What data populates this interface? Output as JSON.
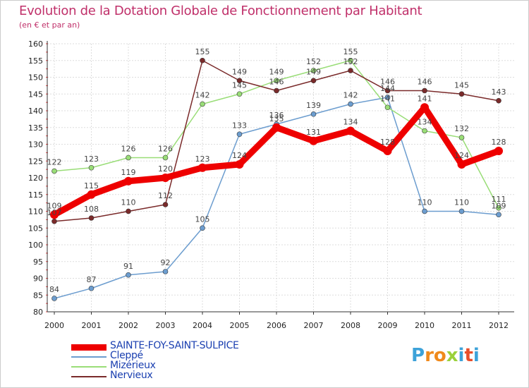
{
  "title": "Evolution de la Dotation Globale de Fonctionnement par Habitant",
  "subtitle": "(en € et par an)",
  "logo": {
    "text": "Proxiti",
    "letter_colors": [
      "#3da2d9",
      "#f08a1c",
      "#f08a1c",
      "#9bd13b",
      "#3da2d9",
      "#e94e2a",
      "#3da2d9"
    ]
  },
  "chart_data": {
    "type": "line",
    "title": "Evolution de la Dotation Globale de Fonctionnement par Habitant",
    "subtitle": "(en € et par an)",
    "xlabel": "",
    "ylabel": "",
    "x": [
      "2000",
      "2001",
      "2002",
      "2003",
      "2004",
      "2005",
      "2006",
      "2007",
      "2008",
      "2009",
      "2010",
      "2011",
      "2012"
    ],
    "ylim": [
      80,
      160
    ],
    "yticks": [
      80,
      85,
      90,
      95,
      100,
      105,
      110,
      115,
      120,
      125,
      130,
      135,
      140,
      145,
      150,
      155,
      160
    ],
    "grid": true,
    "legend_position": "bottom-left",
    "series": [
      {
        "name": "Cleppé",
        "color": "#6c9dcf",
        "values": [
          84,
          87,
          91,
          92,
          105,
          133,
          136,
          139,
          142,
          144,
          110,
          110,
          109
        ]
      },
      {
        "name": "Mizérieux",
        "color": "#99dd77",
        "values": [
          122,
          123,
          126,
          126,
          142,
          145,
          149,
          152,
          155,
          141,
          134,
          132,
          111
        ]
      },
      {
        "name": "Nervieux",
        "color": "#7a2a2a",
        "values": [
          107,
          108,
          110,
          112,
          155,
          149,
          146,
          149,
          152,
          146,
          146,
          145,
          143
        ]
      },
      {
        "name": "SAINTE-FOY-SAINT-SULPICE",
        "color": "#ee0000",
        "values": [
          109,
          115,
          119,
          120,
          123,
          124,
          135,
          131,
          134,
          128,
          141,
          124,
          128
        ]
      }
    ],
    "legend_order": [
      "SAINTE-FOY-SAINT-SULPICE",
      "Cleppé",
      "Mizérieux",
      "Nervieux"
    ]
  }
}
